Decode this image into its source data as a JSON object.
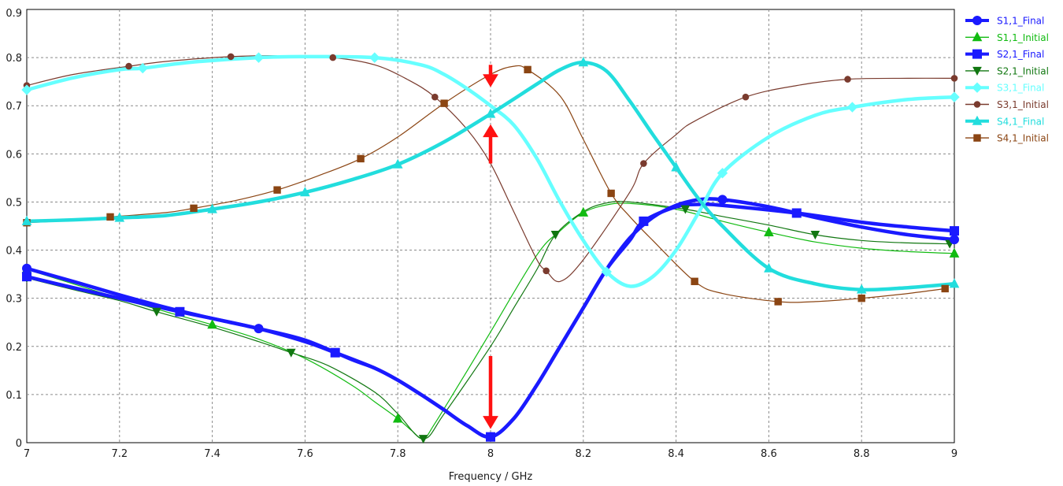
{
  "chart_data": {
    "type": "line",
    "xlabel": "Frequency / GHz",
    "ylabel": "",
    "xlim": [
      7,
      9
    ],
    "ylim": [
      0,
      0.9
    ],
    "x_ticks": [
      "7",
      "7.2",
      "7.4",
      "7.6",
      "7.8",
      "8",
      "8.2",
      "8.4",
      "8.6",
      "8.8",
      "9"
    ],
    "y_ticks": [
      "0",
      "0.1",
      "0.2",
      "0.3",
      "0.4",
      "0.5",
      "0.6",
      "0.7",
      "0.8",
      "0.9"
    ],
    "grid": true,
    "legend_position": "right",
    "series": [
      {
        "name": "S1,1_Final",
        "color": "#1a1aff",
        "width": 4.5,
        "marker": "circle",
        "points": [
          [
            7.0,
            0.362
          ],
          [
            7.1,
            0.335
          ],
          [
            7.2,
            0.307
          ],
          [
            7.3,
            0.281
          ],
          [
            7.4,
            0.258
          ],
          [
            7.5,
            0.237
          ],
          [
            7.6,
            0.213
          ],
          [
            7.7,
            0.173
          ],
          [
            7.75,
            0.155
          ],
          [
            7.8,
            0.13
          ],
          [
            7.85,
            0.1
          ],
          [
            7.9,
            0.068
          ],
          [
            7.95,
            0.035
          ],
          [
            8.0,
            0.012
          ],
          [
            8.05,
            0.05
          ],
          [
            8.1,
            0.12
          ],
          [
            8.15,
            0.2
          ],
          [
            8.2,
            0.28
          ],
          [
            8.25,
            0.36
          ],
          [
            8.3,
            0.425
          ],
          [
            8.35,
            0.468
          ],
          [
            8.4,
            0.493
          ],
          [
            8.45,
            0.505
          ],
          [
            8.5,
            0.505
          ],
          [
            8.6,
            0.49
          ],
          [
            8.7,
            0.468
          ],
          [
            8.8,
            0.448
          ],
          [
            8.9,
            0.432
          ],
          [
            9.0,
            0.422
          ]
        ],
        "markers_x": [
          7.0,
          7.5,
          8.0,
          8.5,
          9.0
        ]
      },
      {
        "name": "S1,1_Initial",
        "color": "#11bb11",
        "width": 1.2,
        "marker": "triangle-up",
        "points": [
          [
            7.0,
            0.36
          ],
          [
            7.1,
            0.33
          ],
          [
            7.2,
            0.3
          ],
          [
            7.3,
            0.272
          ],
          [
            7.4,
            0.245
          ],
          [
            7.5,
            0.215
          ],
          [
            7.6,
            0.175
          ],
          [
            7.7,
            0.12
          ],
          [
            7.75,
            0.085
          ],
          [
            7.8,
            0.05
          ],
          [
            7.83,
            0.025
          ],
          [
            7.855,
            0.008
          ],
          [
            7.88,
            0.04
          ],
          [
            7.95,
            0.15
          ],
          [
            8.0,
            0.23
          ],
          [
            8.1,
            0.39
          ],
          [
            8.15,
            0.44
          ],
          [
            8.2,
            0.478
          ],
          [
            8.25,
            0.494
          ],
          [
            8.3,
            0.497
          ],
          [
            8.4,
            0.485
          ],
          [
            8.5,
            0.46
          ],
          [
            8.6,
            0.437
          ],
          [
            8.7,
            0.417
          ],
          [
            8.8,
            0.404
          ],
          [
            8.9,
            0.397
          ],
          [
            9.0,
            0.393
          ]
        ],
        "markers_x": [
          7.0,
          7.4,
          7.8,
          8.2,
          8.6,
          9.0
        ]
      },
      {
        "name": "S2,1_Final",
        "color": "#1a1aff",
        "width": 4.5,
        "marker": "square",
        "points": [
          [
            7.0,
            0.345
          ],
          [
            7.1,
            0.322
          ],
          [
            7.2,
            0.3
          ],
          [
            7.33,
            0.272
          ],
          [
            7.4,
            0.258
          ],
          [
            7.5,
            0.237
          ],
          [
            7.6,
            0.21
          ],
          [
            7.665,
            0.187
          ],
          [
            7.75,
            0.155
          ],
          [
            7.8,
            0.13
          ],
          [
            7.85,
            0.1
          ],
          [
            7.9,
            0.068
          ],
          [
            7.95,
            0.035
          ],
          [
            8.0,
            0.012
          ],
          [
            8.05,
            0.05
          ],
          [
            8.1,
            0.12
          ],
          [
            8.15,
            0.2
          ],
          [
            8.2,
            0.28
          ],
          [
            8.25,
            0.36
          ],
          [
            8.3,
            0.42
          ],
          [
            8.33,
            0.46
          ],
          [
            8.4,
            0.49
          ],
          [
            8.45,
            0.495
          ],
          [
            8.5,
            0.493
          ],
          [
            8.66,
            0.477
          ],
          [
            8.8,
            0.458
          ],
          [
            8.9,
            0.448
          ],
          [
            9.0,
            0.44
          ]
        ],
        "markers_x": [
          7.0,
          7.33,
          7.665,
          8.0,
          8.33,
          8.66,
          9.0
        ]
      },
      {
        "name": "S2,1_Initial",
        "color": "#117711",
        "width": 1.2,
        "marker": "triangle-down",
        "points": [
          [
            7.0,
            0.342
          ],
          [
            7.1,
            0.318
          ],
          [
            7.2,
            0.295
          ],
          [
            7.28,
            0.272
          ],
          [
            7.4,
            0.24
          ],
          [
            7.5,
            0.21
          ],
          [
            7.57,
            0.187
          ],
          [
            7.65,
            0.16
          ],
          [
            7.75,
            0.105
          ],
          [
            7.8,
            0.06
          ],
          [
            7.855,
            0.008
          ],
          [
            7.9,
            0.06
          ],
          [
            8.0,
            0.2
          ],
          [
            8.05,
            0.28
          ],
          [
            8.1,
            0.36
          ],
          [
            8.14,
            0.432
          ],
          [
            8.2,
            0.48
          ],
          [
            8.25,
            0.498
          ],
          [
            8.3,
            0.5
          ],
          [
            8.42,
            0.485
          ],
          [
            8.5,
            0.47
          ],
          [
            8.6,
            0.452
          ],
          [
            8.7,
            0.432
          ],
          [
            8.8,
            0.42
          ],
          [
            8.9,
            0.415
          ],
          [
            8.99,
            0.413
          ]
        ],
        "markers_x": [
          7.0,
          7.28,
          7.57,
          7.855,
          8.14,
          8.42,
          8.7,
          8.99
        ]
      },
      {
        "name": "S3,1_Final",
        "color": "#66ffff",
        "width": 4.5,
        "marker": "diamond",
        "points": [
          [
            7.0,
            0.733
          ],
          [
            7.1,
            0.758
          ],
          [
            7.2,
            0.775
          ],
          [
            7.25,
            0.778
          ],
          [
            7.35,
            0.79
          ],
          [
            7.5,
            0.8
          ],
          [
            7.6,
            0.802
          ],
          [
            7.75,
            0.8
          ],
          [
            7.85,
            0.785
          ],
          [
            7.9,
            0.765
          ],
          [
            7.95,
            0.735
          ],
          [
            8.0,
            0.7
          ],
          [
            8.05,
            0.66
          ],
          [
            8.1,
            0.59
          ],
          [
            8.15,
            0.5
          ],
          [
            8.2,
            0.42
          ],
          [
            8.25,
            0.355
          ],
          [
            8.3,
            0.325
          ],
          [
            8.35,
            0.345
          ],
          [
            8.4,
            0.4
          ],
          [
            8.45,
            0.48
          ],
          [
            8.5,
            0.56
          ],
          [
            8.6,
            0.635
          ],
          [
            8.7,
            0.68
          ],
          [
            8.78,
            0.697
          ],
          [
            8.9,
            0.713
          ],
          [
            9.0,
            0.718
          ]
        ],
        "markers_x": [
          7.0,
          7.25,
          7.5,
          7.75,
          8.25,
          8.5,
          8.78,
          9.0
        ]
      },
      {
        "name": "S3,1_Initial",
        "color": "#7a3b2e",
        "width": 1.2,
        "marker": "circle-small",
        "points": [
          [
            7.0,
            0.742
          ],
          [
            7.1,
            0.765
          ],
          [
            7.22,
            0.782
          ],
          [
            7.3,
            0.792
          ],
          [
            7.44,
            0.802
          ],
          [
            7.55,
            0.804
          ],
          [
            7.66,
            0.8
          ],
          [
            7.75,
            0.785
          ],
          [
            7.82,
            0.755
          ],
          [
            7.88,
            0.718
          ],
          [
            7.95,
            0.65
          ],
          [
            8.0,
            0.58
          ],
          [
            8.05,
            0.48
          ],
          [
            8.1,
            0.38
          ],
          [
            8.12,
            0.357
          ],
          [
            8.15,
            0.335
          ],
          [
            8.2,
            0.38
          ],
          [
            8.3,
            0.52
          ],
          [
            8.33,
            0.58
          ],
          [
            8.4,
            0.64
          ],
          [
            8.44,
            0.668
          ],
          [
            8.55,
            0.718
          ],
          [
            8.66,
            0.742
          ],
          [
            8.77,
            0.755
          ],
          [
            8.9,
            0.757
          ],
          [
            9.0,
            0.757
          ]
        ],
        "markers_x": [
          7.0,
          7.22,
          7.44,
          7.66,
          7.88,
          8.12,
          8.33,
          8.55,
          8.77,
          9.0
        ]
      },
      {
        "name": "S4,1_Final",
        "color": "#22dddd",
        "width": 4.5,
        "marker": "triangle-up",
        "points": [
          [
            7.0,
            0.46
          ],
          [
            7.1,
            0.463
          ],
          [
            7.2,
            0.467
          ],
          [
            7.3,
            0.472
          ],
          [
            7.4,
            0.485
          ],
          [
            7.5,
            0.5
          ],
          [
            7.6,
            0.52
          ],
          [
            7.7,
            0.546
          ],
          [
            7.8,
            0.578
          ],
          [
            7.9,
            0.625
          ],
          [
            8.0,
            0.683
          ],
          [
            8.1,
            0.745
          ],
          [
            8.15,
            0.775
          ],
          [
            8.2,
            0.79
          ],
          [
            8.25,
            0.772
          ],
          [
            8.3,
            0.71
          ],
          [
            8.35,
            0.64
          ],
          [
            8.4,
            0.572
          ],
          [
            8.45,
            0.505
          ],
          [
            8.5,
            0.45
          ],
          [
            8.6,
            0.362
          ],
          [
            8.7,
            0.33
          ],
          [
            8.8,
            0.318
          ],
          [
            8.9,
            0.322
          ],
          [
            9.0,
            0.33
          ]
        ],
        "markers_x": [
          7.0,
          7.2,
          7.4,
          7.6,
          7.8,
          8.0,
          8.2,
          8.4,
          8.6,
          8.8,
          9.0
        ]
      },
      {
        "name": "S4,1_Initial",
        "color": "#8b4513",
        "width": 1.2,
        "marker": "square-small",
        "points": [
          [
            7.0,
            0.457
          ],
          [
            7.1,
            0.462
          ],
          [
            7.18,
            0.469
          ],
          [
            7.3,
            0.478
          ],
          [
            7.36,
            0.487
          ],
          [
            7.45,
            0.503
          ],
          [
            7.54,
            0.525
          ],
          [
            7.63,
            0.555
          ],
          [
            7.72,
            0.59
          ],
          [
            7.8,
            0.635
          ],
          [
            7.9,
            0.705
          ],
          [
            8.0,
            0.765
          ],
          [
            8.05,
            0.782
          ],
          [
            8.08,
            0.775
          ],
          [
            8.15,
            0.72
          ],
          [
            8.2,
            0.63
          ],
          [
            8.26,
            0.518
          ],
          [
            8.3,
            0.47
          ],
          [
            8.35,
            0.42
          ],
          [
            8.44,
            0.335
          ],
          [
            8.5,
            0.31
          ],
          [
            8.62,
            0.293
          ],
          [
            8.7,
            0.293
          ],
          [
            8.8,
            0.3
          ],
          [
            8.9,
            0.31
          ],
          [
            8.98,
            0.32
          ]
        ],
        "markers_x": [
          7.0,
          7.18,
          7.36,
          7.54,
          7.72,
          7.9,
          8.08,
          8.26,
          8.44,
          8.62,
          8.8,
          8.98
        ]
      }
    ],
    "annotations": [
      {
        "type": "arrow",
        "x": 8.0,
        "y_from": 0.785,
        "y_to": 0.74,
        "color": "#ff1111"
      },
      {
        "type": "arrow",
        "x": 8.0,
        "y_from": 0.58,
        "y_to": 0.66,
        "color": "#ff1111"
      },
      {
        "type": "arrow",
        "x": 8.0,
        "y_from": 0.18,
        "y_to": 0.03,
        "color": "#ff1111"
      }
    ]
  }
}
